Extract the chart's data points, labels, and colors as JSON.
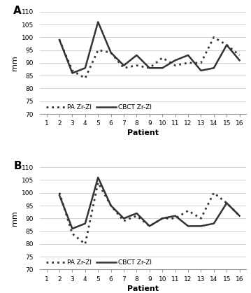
{
  "patients": [
    1,
    2,
    3,
    4,
    5,
    6,
    7,
    8,
    9,
    10,
    11,
    12,
    13,
    14,
    15,
    16
  ],
  "panel_A": {
    "PA": [
      null,
      99,
      87,
      84,
      95,
      94,
      88,
      89,
      88,
      92,
      89,
      90,
      90,
      100,
      97,
      93
    ],
    "CBCT": [
      null,
      99,
      86,
      88,
      106,
      94,
      89,
      93,
      88,
      88,
      91,
      93,
      87,
      88,
      97,
      91
    ]
  },
  "panel_B": {
    "PA": [
      null,
      100,
      84,
      80,
      104,
      95,
      89,
      91,
      87,
      90,
      90,
      93,
      90,
      100,
      96,
      91
    ],
    "CBCT": [
      null,
      99,
      86,
      88,
      106,
      95,
      90,
      92,
      87,
      90,
      91,
      87,
      87,
      88,
      96,
      91
    ]
  },
  "ylim": [
    70,
    110
  ],
  "yticks": [
    70,
    75,
    80,
    85,
    90,
    95,
    100,
    105,
    110
  ],
  "ylabel": "mm",
  "xlabel": "Patient",
  "legend_PA": "PA Zr-Zl",
  "legend_CBCT": "CBCT Zr-Zl",
  "label_A": "A",
  "label_B": "B",
  "line_color": "#333333",
  "dot_color": "#333333",
  "grid_color": "#cccccc"
}
